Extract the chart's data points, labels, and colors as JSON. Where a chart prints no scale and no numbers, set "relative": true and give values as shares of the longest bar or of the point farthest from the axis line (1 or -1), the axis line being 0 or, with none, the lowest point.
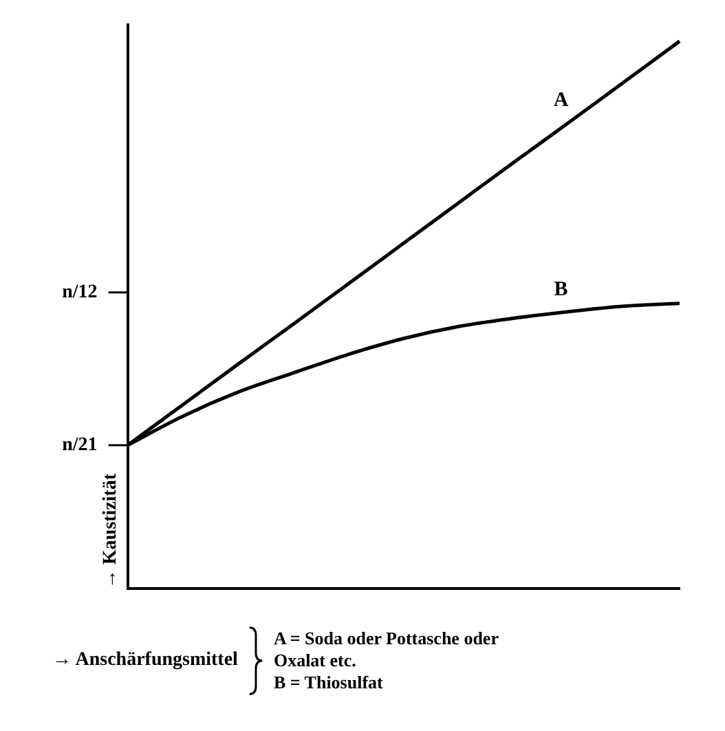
{
  "chart_data": {
    "type": "line",
    "xlabel": "→ Anschärfungsmittel",
    "ylabel": "→ Kaustizität",
    "relative": true,
    "categories": [
      null,
      null,
      null,
      null,
      null,
      null,
      null,
      null,
      null,
      null,
      null
    ],
    "series": [
      {
        "name": "A",
        "color": "#000000",
        "values": [
          0.262,
          0.336,
          0.41,
          0.483,
          0.557,
          0.631,
          0.705,
          0.779,
          0.852,
          0.926,
          1
        ]
      },
      {
        "name": "B",
        "color": "#000000",
        "values": [
          0.262,
          0.315,
          0.359,
          0.394,
          0.428,
          0.457,
          0.479,
          0.494,
          0.506,
          0.516,
          0.521
        ]
      }
    ],
    "grid": false,
    "legend": false,
    "marker": "none",
    "line_style": "solid",
    "annotations": [
      "n/21",
      "n/12",
      "A = Soda oder Pottasche oder Oxalat etc.",
      "B = Thiosulfat"
    ]
  }
}
